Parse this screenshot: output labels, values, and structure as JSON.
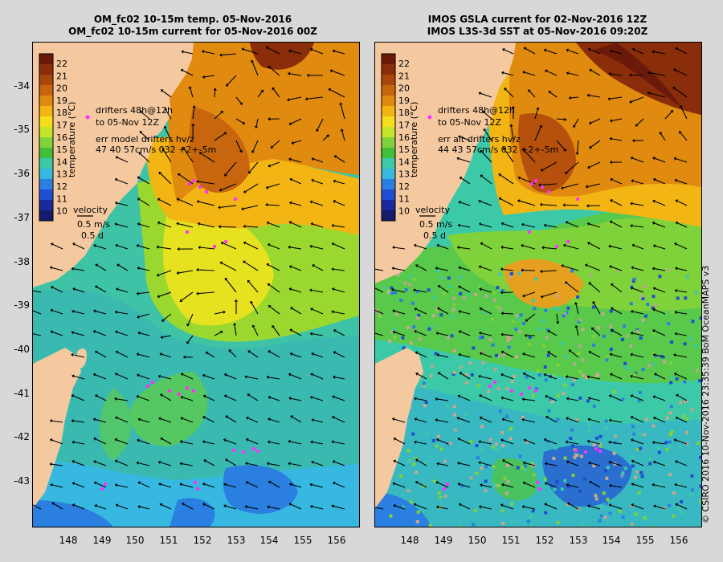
{
  "left_panel": {
    "title_line1": "OM_fc02 10-15m temp. 05-Nov-2016",
    "title_line2": "OM_fc02 10-15m current for 05-Nov-2016 00Z",
    "legend_drifters": "drifters 48h@12h",
    "legend_to": "to 05-Nov 12Z",
    "legend_err": "err model drifters hv/z",
    "legend_err_values": "47 40 57cm/s 032 +2+-5m",
    "velocity_label": "velocity",
    "velocity_scale": "0.5 m/s",
    "velocity_time": "0.5 d"
  },
  "right_panel": {
    "title_line1": "IMOS GSLA current for 02-Nov-2016 12Z",
    "title_line2": "IMOS L3S-3d SST at 05-Nov-2016 09:20Z",
    "legend_drifters": "drifters 48h@12h",
    "legend_to": "to 05-Nov 12Z",
    "legend_err": "err alt drifters hv/z",
    "legend_err_values": "44 43 57cm/s 032 +2+-5m",
    "velocity_label": "velocity",
    "velocity_scale": "0.5 m/s",
    "velocity_time": "0.5 d"
  },
  "colorbar": {
    "label": "temperature (°C)",
    "ticks": [
      "22",
      "21",
      "20",
      "19",
      "18",
      "17",
      "16",
      "15",
      "14",
      "13",
      "12",
      "11",
      "10"
    ],
    "colors": [
      "#6b1a0a",
      "#8a2d0a",
      "#a8460c",
      "#c8660f",
      "#e08a10",
      "#f2b514",
      "#f5df1a",
      "#c5e52a",
      "#7fd23a",
      "#3fbf3a",
      "#3cc9a8",
      "#36b8e0",
      "#2a7fe0",
      "#1f4fd0",
      "#1a2a9c",
      "#141b6a"
    ]
  },
  "axes": {
    "y_ticks": [
      "-34",
      "-35",
      "-36",
      "-37",
      "-38",
      "-39",
      "-40",
      "-41",
      "-42",
      "-43"
    ],
    "x_ticks": [
      "148",
      "149",
      "150",
      "151",
      "152",
      "153",
      "154",
      "155",
      "156"
    ]
  },
  "credit": "© CSIRO 2016   10-Nov-2016 23:35:39 BoM OceanMAPS v3",
  "colors": {
    "land": "#f5c9a0",
    "drifter": "#ff30ff",
    "arrow": "#000000"
  }
}
